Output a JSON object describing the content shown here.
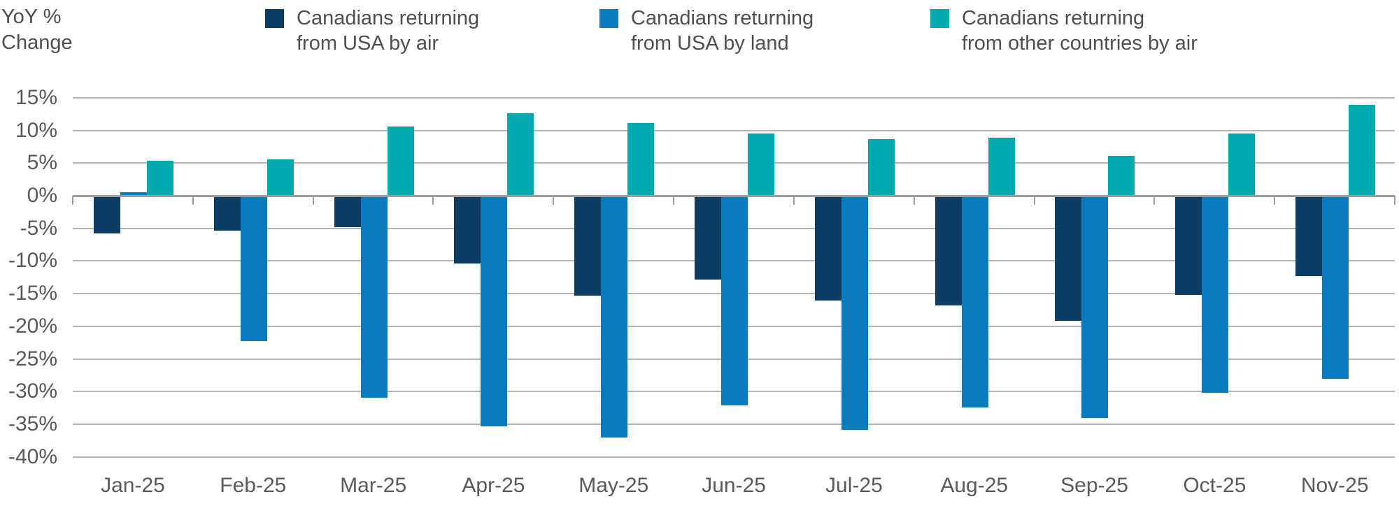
{
  "y_axis_title": {
    "line1": "YoY %",
    "line2": "Change"
  },
  "legend": {
    "items": [
      {
        "id": "usa-air",
        "line1": "Canadians returning",
        "line2": "from USA by air",
        "color": "#0e3d64"
      },
      {
        "id": "usa-land",
        "line1": "Canadians returning",
        "line2": "from USA by land",
        "color": "#0a7abf"
      },
      {
        "id": "other-air",
        "line1": "Canadians returning",
        "line2": "from other countries by air",
        "color": "#00a9ad"
      }
    ]
  },
  "colors": {
    "gridline": "#b4b4b4",
    "zero_line": "#9e9e9e",
    "text": "#595959",
    "navy": "#0e3d64",
    "blue": "#0a7abf",
    "teal": "#00a9ad"
  },
  "chart_data": {
    "type": "bar",
    "title": "YoY % Change",
    "categories": [
      "Jan-25",
      "Feb-25",
      "Mar-25",
      "Apr-25",
      "May-25",
      "Jun-25",
      "Jul-25",
      "Aug-25",
      "Sep-25",
      "Oct-25",
      "Nov-25"
    ],
    "series": [
      {
        "name": "Canadians returning from USA by air",
        "color": "#0e3d64",
        "values": [
          -5.8,
          -5.4,
          -4.8,
          -10.4,
          -15.3,
          -12.8,
          -16.0,
          -16.8,
          -19.2,
          -15.2,
          -12.3
        ]
      },
      {
        "name": "Canadians returning from USA by land",
        "color": "#0a7abf",
        "values": [
          0.5,
          -22.3,
          -30.9,
          -35.3,
          -37.0,
          -32.1,
          -35.8,
          -32.4,
          -34.0,
          -30.2,
          -28.0
        ]
      },
      {
        "name": "Canadians returning from other countries by air",
        "color": "#00a9ad",
        "values": [
          5.4,
          5.6,
          10.6,
          12.6,
          11.1,
          9.5,
          8.7,
          8.9,
          6.1,
          9.5,
          13.9
        ]
      }
    ],
    "ylim": [
      -40,
      15
    ],
    "y_ticks": [
      {
        "value": 15,
        "label": "15%"
      },
      {
        "value": 10,
        "label": "10%"
      },
      {
        "value": 5,
        "label": "5%"
      },
      {
        "value": 0,
        "label": "0%"
      },
      {
        "value": -5,
        "label": "-5%"
      },
      {
        "value": -10,
        "label": "-10%"
      },
      {
        "value": -15,
        "label": "-15%"
      },
      {
        "value": -20,
        "label": "-20%"
      },
      {
        "value": -25,
        "label": "-25%"
      },
      {
        "value": -30,
        "label": "-30%"
      },
      {
        "value": -35,
        "label": "-35%"
      },
      {
        "value": -40,
        "label": "-40%"
      }
    ],
    "grid": true,
    "legend_position": "top"
  }
}
